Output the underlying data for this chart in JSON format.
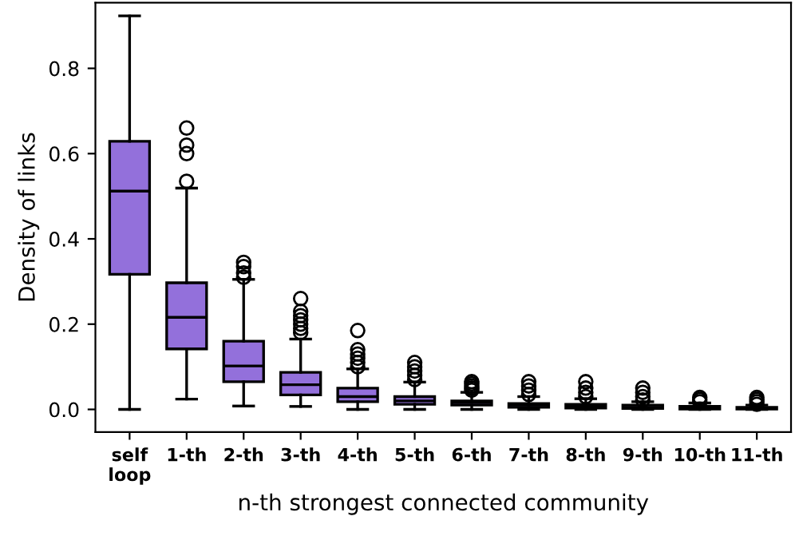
{
  "chart_data": {
    "type": "box",
    "xlabel": "n-th strongest connected community",
    "ylabel": "Density of links",
    "categories": [
      "self\nloop",
      "1-th",
      "2-th",
      "3-th",
      "4-th",
      "5-th",
      "6-th",
      "7-th",
      "8-th",
      "9-th",
      "10-th",
      "11-th"
    ],
    "color": "#9370db",
    "boxes": [
      {
        "low": 0.0,
        "q1": 0.317,
        "median": 0.512,
        "q3": 0.629,
        "high": 0.923
      },
      {
        "low": 0.024,
        "q1": 0.142,
        "median": 0.216,
        "q3": 0.297,
        "high": 0.519,
        "outliers": [
          0.535,
          0.6,
          0.62,
          0.66
        ]
      },
      {
        "low": 0.008,
        "q1": 0.065,
        "median": 0.102,
        "q3": 0.16,
        "high": 0.305,
        "outliers": [
          0.31,
          0.32,
          0.335,
          0.345
        ]
      },
      {
        "low": 0.007,
        "q1": 0.034,
        "median": 0.058,
        "q3": 0.087,
        "high": 0.165,
        "outliers": [
          0.18,
          0.19,
          0.2,
          0.21,
          0.22,
          0.23,
          0.26
        ]
      },
      {
        "low": 0.0,
        "q1": 0.018,
        "median": 0.03,
        "q3": 0.05,
        "high": 0.095,
        "outliers": [
          0.1,
          0.11,
          0.12,
          0.13,
          0.14,
          0.185
        ]
      },
      {
        "low": 0.0,
        "q1": 0.012,
        "median": 0.02,
        "q3": 0.03,
        "high": 0.064,
        "outliers": [
          0.07,
          0.08,
          0.09,
          0.1,
          0.11
        ]
      },
      {
        "low": 0.0,
        "q1": 0.01,
        "median": 0.016,
        "q3": 0.02,
        "high": 0.04,
        "outliers": [
          0.045,
          0.05,
          0.055,
          0.06,
          0.065
        ]
      },
      {
        "low": 0.0,
        "q1": 0.005,
        "median": 0.01,
        "q3": 0.014,
        "high": 0.03,
        "outliers": [
          0.035,
          0.045,
          0.055,
          0.065
        ]
      },
      {
        "low": 0.0,
        "q1": 0.003,
        "median": 0.008,
        "q3": 0.012,
        "high": 0.025,
        "outliers": [
          0.03,
          0.04,
          0.05,
          0.065
        ]
      },
      {
        "low": 0.0,
        "q1": 0.002,
        "median": 0.005,
        "q3": 0.01,
        "high": 0.018,
        "outliers": [
          0.022,
          0.03,
          0.04,
          0.05
        ]
      },
      {
        "low": 0.0,
        "q1": 0.001,
        "median": 0.004,
        "q3": 0.007,
        "high": 0.015,
        "outliers": [
          0.018,
          0.023,
          0.028
        ]
      },
      {
        "low": 0.0,
        "q1": 0.001,
        "median": 0.003,
        "q3": 0.005,
        "high": 0.01,
        "outliers": [
          0.012,
          0.018,
          0.023,
          0.028
        ]
      }
    ],
    "ylim": [
      -0.053,
      0.954
    ],
    "yticks": [
      {
        "value": 0,
        "label": "0.0"
      },
      0.2,
      0.4,
      0.6,
      0.8
    ],
    "grid": false,
    "legend": false
  }
}
